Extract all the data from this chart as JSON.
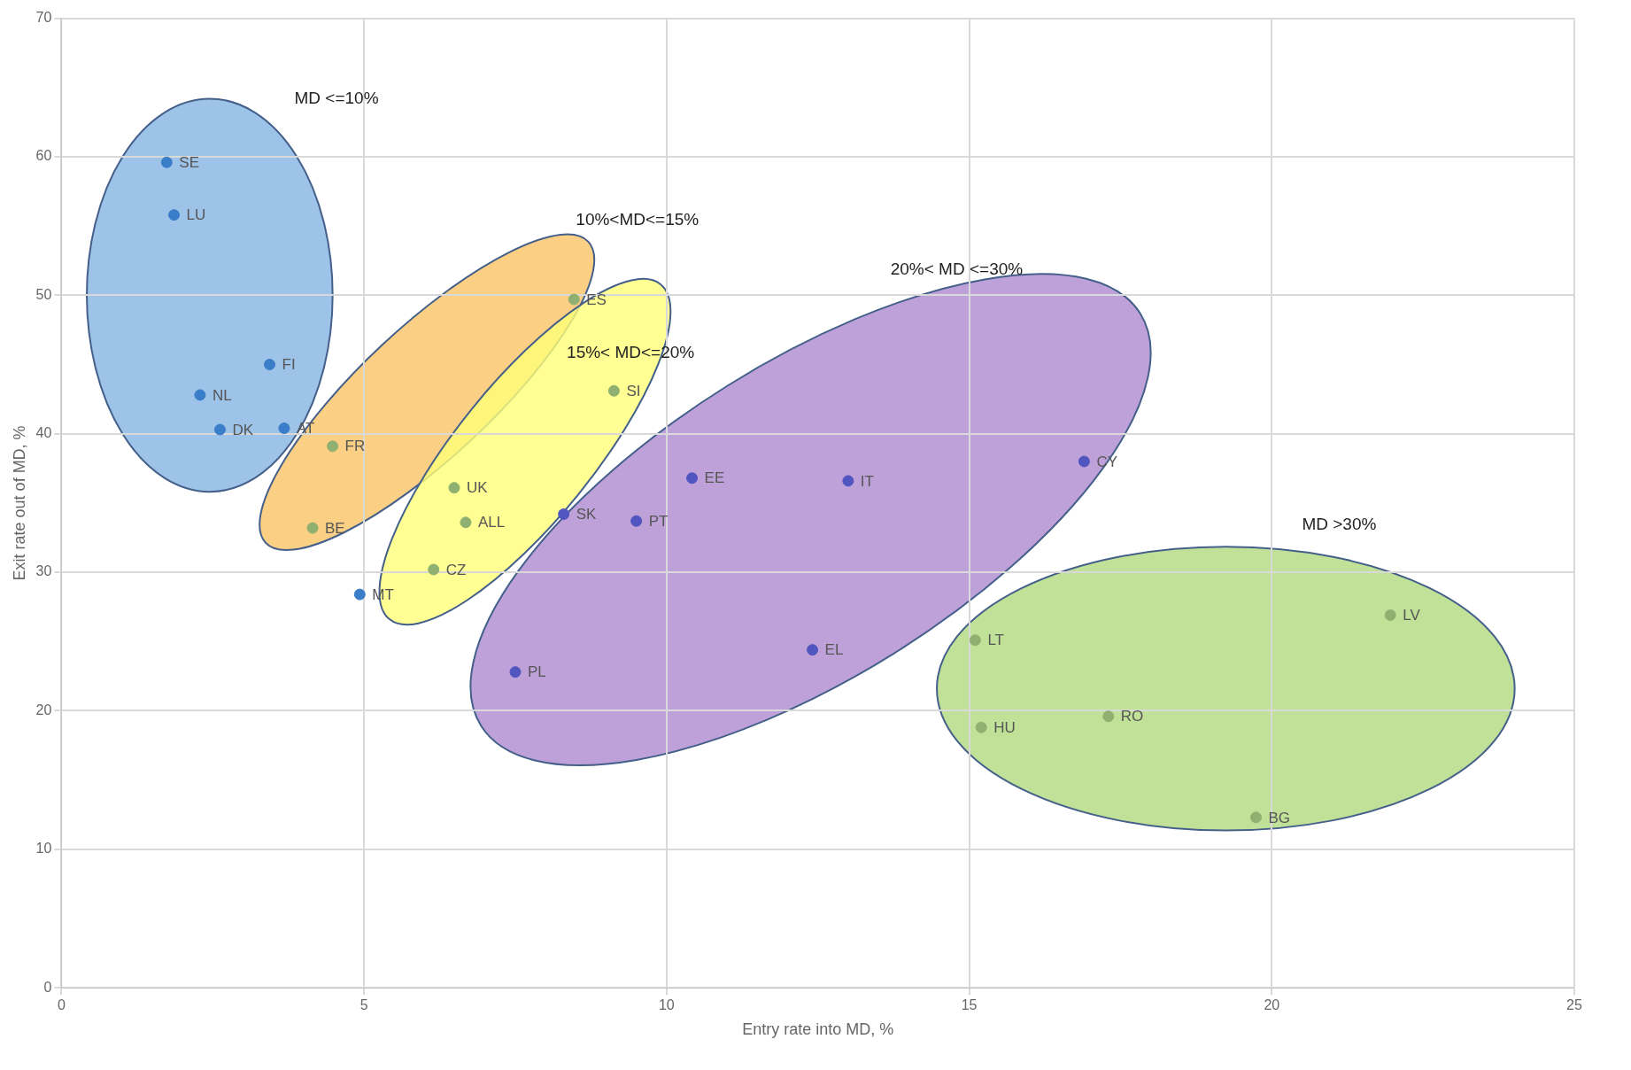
{
  "chart_data": {
    "type": "scatter",
    "xlabel": "Entry rate into MD, %",
    "ylabel": "Exit rate out of MD, %",
    "xlim": [
      0,
      25
    ],
    "xticks": [
      0,
      5,
      10,
      15,
      20,
      25
    ],
    "ylim": [
      0,
      70
    ],
    "yticks": [
      0,
      10,
      20,
      30,
      40,
      50,
      60,
      70
    ],
    "grid": true,
    "legend": false,
    "marker": "circle",
    "annotations": [
      "MD <=10%",
      "10%<MD<=15%",
      "15%< MD<=20%",
      "20%< MD <=30%",
      "MD >30%"
    ],
    "series": [
      {
        "color": "#3a7dc9",
        "x": [
          1.74,
          1.86,
          3.44,
          2.29,
          2.62,
          3.68,
          4.93
        ],
        "values": [
          59.6,
          55.8,
          45.0,
          42.8,
          40.3,
          40.4,
          28.4
        ],
        "value_labels": [
          "SE",
          "LU",
          "FI",
          "NL",
          "DK",
          "AT",
          "MT"
        ]
      },
      {
        "color": "#8fb070",
        "x": [
          4.48,
          4.15,
          8.47,
          9.13,
          6.49,
          6.68,
          6.15,
          15.1,
          15.2,
          17.3,
          19.74,
          21.96
        ],
        "values": [
          39.1,
          33.2,
          49.7,
          43.1,
          36.1,
          33.6,
          30.2,
          25.1,
          18.8,
          19.6,
          12.3,
          26.9
        ],
        "value_labels": [
          "FR",
          "BE",
          "ES",
          "SI",
          "UK",
          "ALL",
          "CZ",
          "LT",
          "HU",
          "RO",
          "BG",
          "LV"
        ]
      },
      {
        "color": "#5055c0",
        "x": [
          8.3,
          9.5,
          10.42,
          13.0,
          16.9,
          7.5,
          12.41
        ],
        "values": [
          34.2,
          33.7,
          36.8,
          36.6,
          38.0,
          22.8,
          24.4
        ],
        "value_labels": [
          "SK",
          "PT",
          "EE",
          "IT",
          "CY",
          "PL",
          "EL"
        ]
      }
    ]
  }
}
